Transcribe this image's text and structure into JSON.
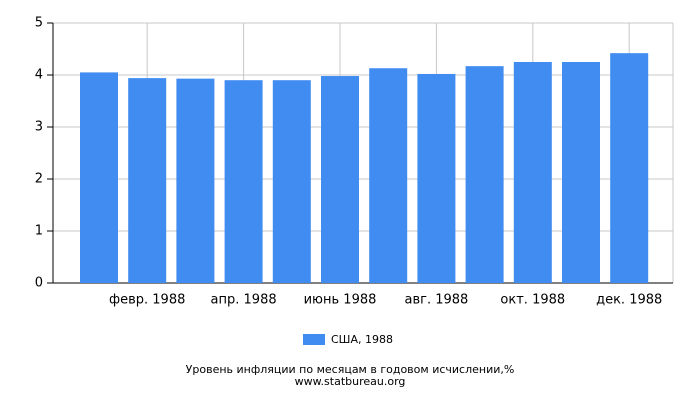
{
  "chart_data": {
    "type": "bar",
    "title": "Уровень инфляции по месяцам в годовом исчислении,%",
    "subtitle": "www.statbureau.org",
    "categories": [
      null,
      "февр. 1988",
      null,
      "апр. 1988",
      null,
      "июнь 1988",
      null,
      "авг. 1988",
      null,
      "окт. 1988",
      null,
      "дек. 1988"
    ],
    "series": [
      {
        "name": "США, 1988",
        "color": "#418cf0",
        "values": [
          4.05,
          3.94,
          3.93,
          3.9,
          3.9,
          3.98,
          4.13,
          4.02,
          4.17,
          4.25,
          4.25,
          4.42
        ]
      }
    ],
    "ylim": [
      0,
      5
    ],
    "yticks": [
      0,
      1,
      2,
      3,
      4,
      5
    ],
    "grid": true
  }
}
